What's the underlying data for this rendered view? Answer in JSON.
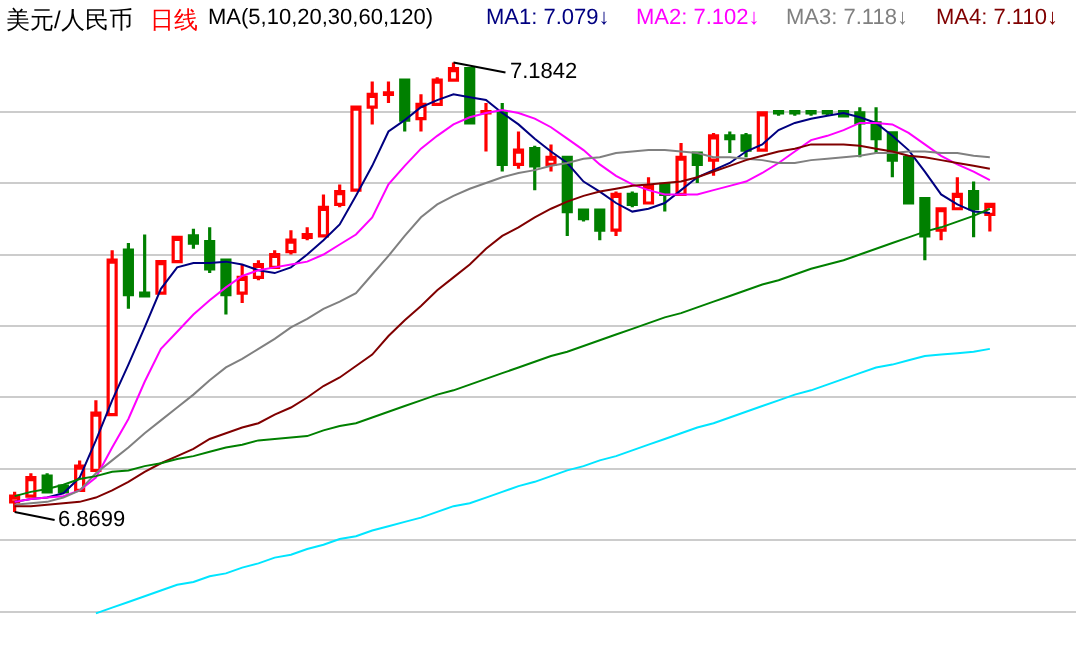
{
  "chart_data": {
    "type": "candlestick",
    "title": "美元/人民币",
    "subtitle": "日线",
    "annotations": [
      "MA(5,10,20,30,60,120)",
      "7.1842",
      "6.8699"
    ],
    "categories": [
      null,
      null,
      null,
      null,
      null,
      null,
      null,
      null,
      null,
      null,
      null,
      null,
      null,
      null,
      null,
      null,
      null,
      null,
      null,
      null,
      null,
      null,
      null,
      null,
      null,
      null,
      null,
      null,
      null,
      null,
      null,
      null,
      null,
      null,
      null,
      null,
      null,
      null,
      null,
      null,
      null,
      null,
      null,
      null,
      null,
      null,
      null,
      null,
      null,
      null,
      null,
      null,
      null,
      null,
      null,
      null,
      null,
      null,
      null,
      null,
      null
    ],
    "ohlc": [
      [
        6.877,
        6.884,
        6.8699,
        6.881
      ],
      [
        6.881,
        6.897,
        6.88,
        6.894
      ],
      [
        6.895,
        6.897,
        6.883,
        6.884
      ],
      [
        6.888,
        6.889,
        6.883,
        6.884
      ],
      [
        6.885,
        6.906,
        6.884,
        6.902
      ],
      [
        6.899,
        6.948,
        6.899,
        6.939
      ],
      [
        6.938,
        7.053,
        6.938,
        7.046
      ],
      [
        7.053,
        7.058,
        7.012,
        7.022
      ],
      [
        7.023,
        7.064,
        7.021,
        7.021
      ],
      [
        7.023,
        7.046,
        7.022,
        7.045
      ],
      [
        7.045,
        7.063,
        7.045,
        7.062
      ],
      [
        7.063,
        7.068,
        7.054,
        7.058
      ],
      [
        7.059,
        7.069,
        7.037,
        7.04
      ],
      [
        7.046,
        7.046,
        7.008,
        7.022
      ],
      [
        7.023,
        7.043,
        7.016,
        7.034
      ],
      [
        7.034,
        7.046,
        7.032,
        7.043
      ],
      [
        7.041,
        7.053,
        7.04,
        7.05
      ],
      [
        7.052,
        7.067,
        7.05,
        7.06
      ],
      [
        7.062,
        7.069,
        7.06,
        7.064
      ],
      [
        7.063,
        7.092,
        7.063,
        7.083
      ],
      [
        7.085,
        7.099,
        7.083,
        7.094
      ],
      [
        7.095,
        7.154,
        7.094,
        7.153
      ],
      [
        7.153,
        7.171,
        7.141,
        7.162
      ],
      [
        7.162,
        7.171,
        7.156,
        7.163
      ],
      [
        7.172,
        7.172,
        7.136,
        7.144
      ],
      [
        7.145,
        7.162,
        7.136,
        7.155
      ],
      [
        7.155,
        7.174,
        7.154,
        7.172
      ],
      [
        7.172,
        7.1842,
        7.171,
        7.18
      ],
      [
        7.18,
        7.18,
        7.141,
        7.142
      ],
      [
        7.149,
        7.156,
        7.122,
        7.15
      ],
      [
        7.149,
        7.156,
        7.108,
        7.113
      ],
      [
        7.113,
        7.136,
        7.11,
        7.123
      ],
      [
        7.124,
        7.126,
        7.095,
        7.112
      ],
      [
        7.113,
        7.127,
        7.108,
        7.118
      ],
      [
        7.118,
        7.119,
        7.063,
        7.08
      ],
      [
        7.081,
        7.081,
        7.073,
        7.075
      ],
      [
        7.081,
        7.082,
        7.06,
        7.067
      ],
      [
        7.067,
        7.094,
        7.063,
        7.092
      ],
      [
        7.092,
        7.094,
        7.083,
        7.085
      ],
      [
        7.086,
        7.104,
        7.085,
        7.098
      ],
      [
        7.099,
        7.1,
        7.08,
        7.092
      ],
      [
        7.092,
        7.128,
        7.091,
        7.118
      ],
      [
        7.121,
        7.122,
        7.1,
        7.113
      ],
      [
        7.116,
        7.135,
        7.105,
        7.133
      ],
      [
        7.133,
        7.136,
        7.121,
        7.131
      ],
      [
        7.133,
        7.135,
        7.118,
        7.123
      ],
      [
        7.123,
        7.149,
        7.122,
        7.149
      ],
      [
        7.15,
        7.15,
        7.147,
        7.149
      ],
      [
        7.15,
        7.151,
        7.147,
        7.149
      ],
      [
        7.15,
        7.15,
        7.147,
        7.149
      ],
      [
        7.15,
        7.151,
        7.147,
        7.149
      ],
      [
        7.15,
        7.15,
        7.146,
        7.147
      ],
      [
        7.149,
        7.153,
        7.118,
        7.142
      ],
      [
        7.142,
        7.153,
        7.121,
        7.131
      ],
      [
        7.135,
        7.135,
        7.104,
        7.116
      ],
      [
        7.118,
        7.118,
        7.085,
        7.086
      ],
      [
        7.089,
        7.089,
        7.046,
        7.063
      ],
      [
        7.067,
        7.082,
        7.06,
        7.082
      ],
      [
        7.082,
        7.104,
        7.081,
        7.092
      ],
      [
        7.094,
        7.101,
        7.062,
        7.082
      ],
      [
        7.078,
        7.086,
        7.066,
        7.085
      ]
    ],
    "colors": [
      "#ff0000",
      "#ff0000",
      "#008000",
      "#008000",
      "#ff0000",
      "#ff0000",
      "#ff0000",
      "#008000",
      "#008000",
      "#ff0000",
      "#ff0000",
      "#008000",
      "#008000",
      "#008000",
      "#ff0000",
      "#ff0000",
      "#ff0000",
      "#ff0000",
      "#ff0000",
      "#ff0000",
      "#ff0000",
      "#ff0000",
      "#ff0000",
      "#ff0000",
      "#008000",
      "#ff0000",
      "#ff0000",
      "#ff0000",
      "#008000",
      "#ff0000",
      "#008000",
      "#ff0000",
      "#008000",
      "#ff0000",
      "#008000",
      "#008000",
      "#008000",
      "#ff0000",
      "#008000",
      "#ff0000",
      "#008000",
      "#ff0000",
      "#008000",
      "#ff0000",
      "#008000",
      "#008000",
      "#ff0000",
      "#008000",
      "#008000",
      "#008000",
      "#008000",
      "#008000",
      "#008000",
      "#008000",
      "#008000",
      "#008000",
      "#008000",
      "#ff0000",
      "#ff0000",
      "#008000",
      "#ff0000"
    ],
    "series": [
      {
        "name": "MA1: 7.079↓",
        "type": "line",
        "color": "#000080",
        "values": [
          6.877,
          6.879,
          6.88,
          6.883,
          6.894,
          6.92,
          6.948,
          6.973,
          6.999,
          7.026,
          7.041,
          7.044,
          7.044,
          7.045,
          7.043,
          7.039,
          7.037,
          7.041,
          7.05,
          7.06,
          7.071,
          7.091,
          7.112,
          7.136,
          7.144,
          7.153,
          7.158,
          7.162,
          7.16,
          7.158,
          7.149,
          7.141,
          7.131,
          7.122,
          7.114,
          7.101,
          7.094,
          7.086,
          7.08,
          7.082,
          7.086,
          7.095,
          7.104,
          7.109,
          7.114,
          7.122,
          7.127,
          7.137,
          7.142,
          7.145,
          7.147,
          7.149,
          7.146,
          7.142,
          7.133,
          7.123,
          7.108,
          7.092,
          7.085,
          7.08,
          7.079
        ]
      },
      {
        "name": "MA2: 7.102↓",
        "type": "line",
        "color": "#ff00ff",
        "values": [
          6.877,
          6.879,
          6.88,
          6.881,
          6.885,
          6.894,
          6.915,
          6.935,
          6.961,
          6.984,
          6.996,
          7.008,
          7.018,
          7.027,
          7.035,
          7.039,
          7.041,
          7.043,
          7.045,
          7.05,
          7.057,
          7.064,
          7.076,
          7.099,
          7.112,
          7.124,
          7.133,
          7.141,
          7.146,
          7.149,
          7.151,
          7.149,
          7.145,
          7.139,
          7.131,
          7.123,
          7.113,
          7.105,
          7.099,
          7.095,
          7.092,
          7.092,
          7.092,
          7.095,
          7.098,
          7.101,
          7.107,
          7.114,
          7.122,
          7.13,
          7.133,
          7.137,
          7.142,
          7.142,
          7.141,
          7.135,
          7.127,
          7.119,
          7.113,
          7.108,
          7.102
        ]
      },
      {
        "name": "MA3: 7.118↓",
        "type": "line",
        "color": "#808080",
        "values": [
          6.875,
          6.876,
          6.877,
          6.88,
          6.885,
          6.897,
          6.906,
          6.915,
          6.925,
          6.934,
          6.943,
          6.952,
          6.962,
          6.971,
          6.977,
          6.984,
          6.991,
          6.999,
          7.005,
          7.012,
          7.017,
          7.023,
          7.036,
          7.049,
          7.063,
          7.076,
          7.085,
          7.091,
          7.096,
          7.1,
          7.104,
          7.107,
          7.109,
          7.112,
          7.114,
          7.117,
          7.118,
          7.121,
          7.122,
          7.123,
          7.123,
          7.122,
          7.121,
          7.118,
          7.118,
          7.117,
          7.116,
          7.114,
          7.114,
          7.116,
          7.117,
          7.118,
          7.119,
          7.121,
          7.121,
          7.122,
          7.122,
          7.121,
          7.121,
          7.119,
          7.118
        ]
      },
      {
        "name": "MA4: 7.110↓",
        "type": "line",
        "color": "#800000",
        "values": [
          6.874,
          6.874,
          6.875,
          6.876,
          6.877,
          6.88,
          6.885,
          6.891,
          6.898,
          6.904,
          6.909,
          6.914,
          6.921,
          6.925,
          6.929,
          6.932,
          6.938,
          6.943,
          6.95,
          6.958,
          6.964,
          6.972,
          6.98,
          6.993,
          7.004,
          7.014,
          7.025,
          7.034,
          7.043,
          7.054,
          7.063,
          7.069,
          7.076,
          7.082,
          7.087,
          7.091,
          7.094,
          7.096,
          7.098,
          7.099,
          7.1,
          7.101,
          7.104,
          7.108,
          7.112,
          7.116,
          7.119,
          7.122,
          7.124,
          7.127,
          7.127,
          7.127,
          7.126,
          7.124,
          7.122,
          7.119,
          7.118,
          7.116,
          7.114,
          7.112,
          7.11
        ]
      },
      {
        "type": "line",
        "color": "#008000",
        "values": [
          6.881,
          6.884,
          6.886,
          6.889,
          6.893,
          6.895,
          6.898,
          6.899,
          6.902,
          6.904,
          6.907,
          6.909,
          6.912,
          6.915,
          6.917,
          6.92,
          6.921,
          6.922,
          6.923,
          6.927,
          6.93,
          6.932,
          6.936,
          6.94,
          6.944,
          6.948,
          6.952,
          6.955,
          6.959,
          6.963,
          6.967,
          6.971,
          6.975,
          6.979,
          6.982,
          6.986,
          6.99,
          6.994,
          6.998,
          7.002,
          7.006,
          7.009,
          7.013,
          7.017,
          7.021,
          7.025,
          7.029,
          7.032,
          7.036,
          7.04,
          7.043,
          7.046,
          7.05,
          7.054,
          7.058,
          7.062,
          7.066,
          7.069,
          7.073,
          7.077,
          7.082
        ]
      },
      {
        "type": "line",
        "color": "#00e5ff",
        "values": [
          null,
          null,
          null,
          null,
          null,
          6.799,
          6.803,
          6.807,
          6.811,
          6.815,
          6.819,
          6.821,
          6.825,
          6.827,
          6.831,
          6.834,
          6.838,
          6.84,
          6.844,
          6.847,
          6.851,
          6.853,
          6.857,
          6.86,
          6.863,
          6.866,
          6.87,
          6.874,
          6.876,
          6.88,
          6.884,
          6.888,
          6.891,
          6.895,
          6.899,
          6.902,
          6.906,
          6.909,
          6.913,
          6.917,
          6.921,
          6.925,
          6.929,
          6.932,
          6.936,
          6.94,
          6.944,
          6.948,
          6.952,
          6.955,
          6.959,
          6.963,
          6.967,
          6.971,
          6.973,
          6.976,
          6.979,
          6.98,
          6.981,
          6.982,
          6.984
        ]
      }
    ],
    "yticks": [
      {
        "value": 6.8,
        "label": null
      },
      {
        "value": 6.85,
        "label": null
      },
      {
        "value": 6.9,
        "label": null
      },
      {
        "value": 6.95,
        "label": null
      },
      {
        "value": 7.0,
        "label": null
      },
      {
        "value": 7.05,
        "label": null
      },
      {
        "value": 7.1,
        "label": null
      },
      {
        "value": 7.15,
        "label": null
      }
    ],
    "grid": "y"
  }
}
